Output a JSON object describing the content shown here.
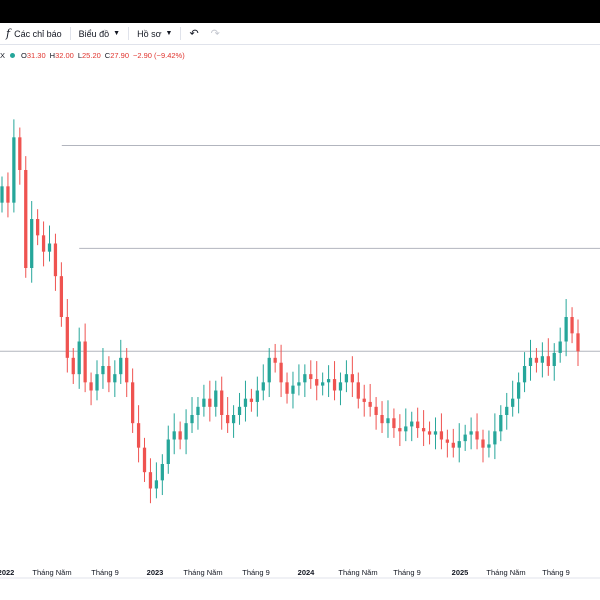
{
  "toolbar": {
    "indicators_label": "Các chỉ báo",
    "chart_label": "Biểu đồ",
    "profile_label": "Hồ sơ"
  },
  "legend": {
    "symbol": "X",
    "o_label": "O",
    "o_value": "31.30",
    "h_label": "H",
    "h_value": "32.00",
    "l_label": "L",
    "l_value": "25.20",
    "c_label": "C",
    "c_value": "27.90",
    "change": "−2.90 (−9.42%)"
  },
  "colors": {
    "up": "#26a69a",
    "down": "#ef5350",
    "line": "#b2b5be"
  },
  "chart_data": {
    "type": "candlestick",
    "x_axis_labels": [
      "2022",
      "Tháng Năm",
      "Tháng 9",
      "2023",
      "Tháng Năm",
      "Tháng 9",
      "2024",
      "Tháng Năm",
      "Tháng 9",
      "2025",
      "Tháng Năm",
      "Tháng 9"
    ],
    "year_labels": [
      "2022",
      "2023",
      "2024",
      "2025"
    ],
    "horizontal_lines": [
      {
        "value": 40.5,
        "x_start_fraction": 0.103
      },
      {
        "value": 34.2,
        "x_start_fraction": 0.132
      },
      {
        "value": 27.9,
        "x_start_fraction": 0.0
      }
    ],
    "ylim": [
      15,
      45
    ],
    "close_series": [
      38.0,
      37.0,
      41.0,
      39.0,
      33.0,
      36.0,
      35.0,
      34.0,
      34.5,
      32.5,
      30.0,
      27.5,
      26.5,
      28.5,
      26.0,
      25.5,
      26.5,
      27.0,
      26.0,
      26.5,
      27.5,
      26.0,
      23.5,
      22.0,
      20.5,
      19.5,
      20.0,
      21.0,
      22.5,
      23.0,
      22.5,
      23.5,
      24.0,
      24.5,
      25.0,
      24.5,
      25.5,
      24.0,
      23.5,
      24.0,
      24.5,
      25.0,
      24.8,
      25.5,
      26.0,
      27.5,
      27.2,
      26.0,
      25.3,
      25.8,
      26.0,
      26.5,
      26.2,
      25.8,
      26.0,
      26.2,
      25.5,
      26.0,
      26.5,
      26.0,
      25.0,
      24.8,
      24.5,
      24.0,
      23.5,
      23.8,
      23.2,
      23.0,
      23.3,
      23.6,
      23.2,
      23.0,
      22.8,
      23.0,
      22.5,
      22.3,
      22.0,
      22.4,
      22.8,
      23.0,
      22.5,
      22.0,
      22.2,
      23.0,
      24.0,
      24.5,
      25.0,
      26.0,
      27.0,
      27.5,
      27.2,
      27.6,
      27.0,
      27.8,
      28.5,
      30.0,
      29.0,
      27.9
    ]
  }
}
